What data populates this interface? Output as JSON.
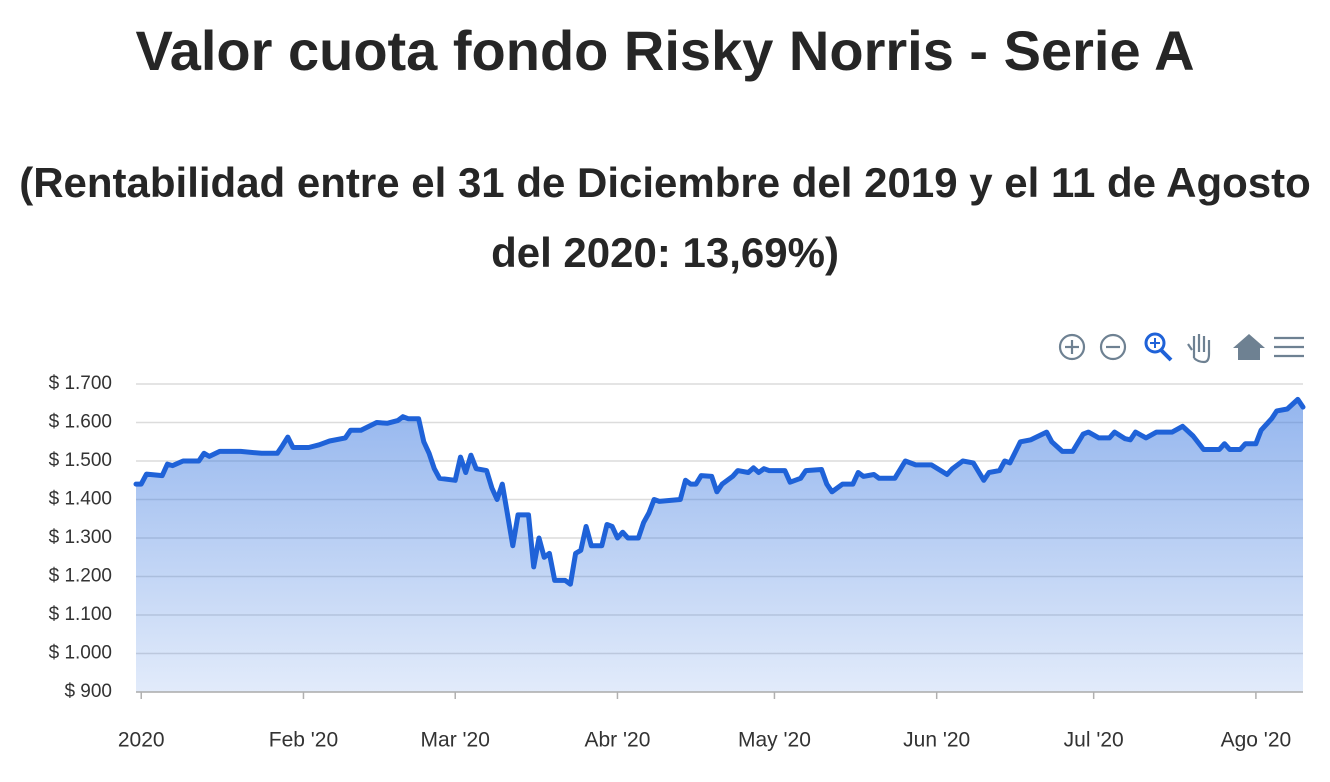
{
  "chart_data": {
    "type": "area",
    "title": "Valor cuota fondo Risky Norris - Serie A",
    "subtitle": "(Rentabilidad entre el 31 de Diciembre del 2019 y el 11 de Agosto del 2020: 13,69%)",
    "x": [
      -1,
      0,
      1,
      4,
      5,
      6,
      8,
      11,
      12,
      13,
      15,
      19,
      23,
      26,
      27,
      28,
      29,
      32,
      34,
      36,
      39,
      40,
      42,
      45,
      47,
      49,
      50,
      51,
      53,
      54,
      55,
      56,
      57,
      60,
      61,
      62,
      63,
      64,
      66,
      67,
      68,
      69,
      70,
      71,
      72,
      74,
      75,
      76,
      77,
      78,
      79,
      81,
      82,
      83,
      84,
      85,
      86,
      88,
      89,
      90,
      91,
      92,
      93,
      95,
      96,
      97,
      98,
      99,
      103,
      104,
      105,
      106,
      107,
      109,
      110,
      111,
      113,
      114,
      116,
      117,
      118,
      119,
      120,
      123,
      124,
      126,
      127,
      130,
      131,
      132,
      134,
      136,
      137,
      138,
      140,
      141,
      144,
      146,
      148,
      151,
      154,
      155,
      157,
      159,
      161,
      162,
      164,
      165,
      166,
      168,
      170,
      173,
      174,
      176,
      178,
      180,
      181,
      183,
      185,
      186,
      188,
      189,
      190,
      192,
      194,
      197,
      199,
      201,
      203,
      206,
      207,
      208,
      210,
      211,
      213,
      214,
      216,
      217,
      219,
      221,
      222
    ],
    "series": [
      {
        "name": "Valor cuota",
        "color": "#1f62d8",
        "values": [
          1440,
          1440,
          1466,
          1462,
          1492,
          1488,
          1500,
          1500,
          1520,
          1512,
          1525,
          1525,
          1520,
          1520,
          1540,
          1562,
          1535,
          1535,
          1542,
          1552,
          1560,
          1580,
          1580,
          1600,
          1598,
          1605,
          1615,
          1610,
          1610,
          1550,
          1520,
          1480,
          1455,
          1450,
          1510,
          1470,
          1515,
          1480,
          1475,
          1430,
          1400,
          1440,
          1360,
          1280,
          1360,
          1360,
          1225,
          1300,
          1250,
          1260,
          1190,
          1190,
          1180,
          1260,
          1268,
          1330,
          1280,
          1280,
          1335,
          1330,
          1300,
          1315,
          1300,
          1300,
          1340,
          1365,
          1400,
          1395,
          1400,
          1450,
          1440,
          1440,
          1462,
          1460,
          1420,
          1440,
          1460,
          1475,
          1470,
          1482,
          1470,
          1480,
          1475,
          1475,
          1445,
          1455,
          1475,
          1478,
          1440,
          1420,
          1440,
          1440,
          1470,
          1460,
          1465,
          1455,
          1455,
          1500,
          1490,
          1490,
          1465,
          1480,
          1500,
          1495,
          1450,
          1470,
          1475,
          1500,
          1495,
          1550,
          1555,
          1575,
          1550,
          1525,
          1525,
          1570,
          1575,
          1560,
          1560,
          1575,
          1558,
          1555,
          1575,
          1560,
          1575,
          1575,
          1590,
          1565,
          1530,
          1530,
          1545,
          1530,
          1530,
          1545,
          1545,
          1580,
          1610,
          1630,
          1635,
          1660,
          1640
        ]
      }
    ],
    "xlim": [
      -1,
      222
    ],
    "xticks": [
      {
        "value": 0,
        "label": "2020"
      },
      {
        "value": 31,
        "label": "Feb '20"
      },
      {
        "value": 60,
        "label": "Mar '20"
      },
      {
        "value": 91,
        "label": "Abr '20"
      },
      {
        "value": 121,
        "label": "May '20"
      },
      {
        "value": 152,
        "label": "Jun '20"
      },
      {
        "value": 182,
        "label": "Jul '20"
      },
      {
        "value": 213,
        "label": "Ago '20"
      }
    ],
    "ylim": [
      900,
      1700
    ],
    "yticks": [
      {
        "value": 900,
        "label": "$ 900"
      },
      {
        "value": 1000,
        "label": "$ 1.000"
      },
      {
        "value": 1100,
        "label": "$ 1.100"
      },
      {
        "value": 1200,
        "label": "$ 1.200"
      },
      {
        "value": 1300,
        "label": "$ 1.300"
      },
      {
        "value": 1400,
        "label": "$ 1.400"
      },
      {
        "value": 1500,
        "label": "$ 1.500"
      },
      {
        "value": 1600,
        "label": "$ 1.600"
      },
      {
        "value": 1700,
        "label": "$ 1.700"
      }
    ],
    "grid": true
  }
}
